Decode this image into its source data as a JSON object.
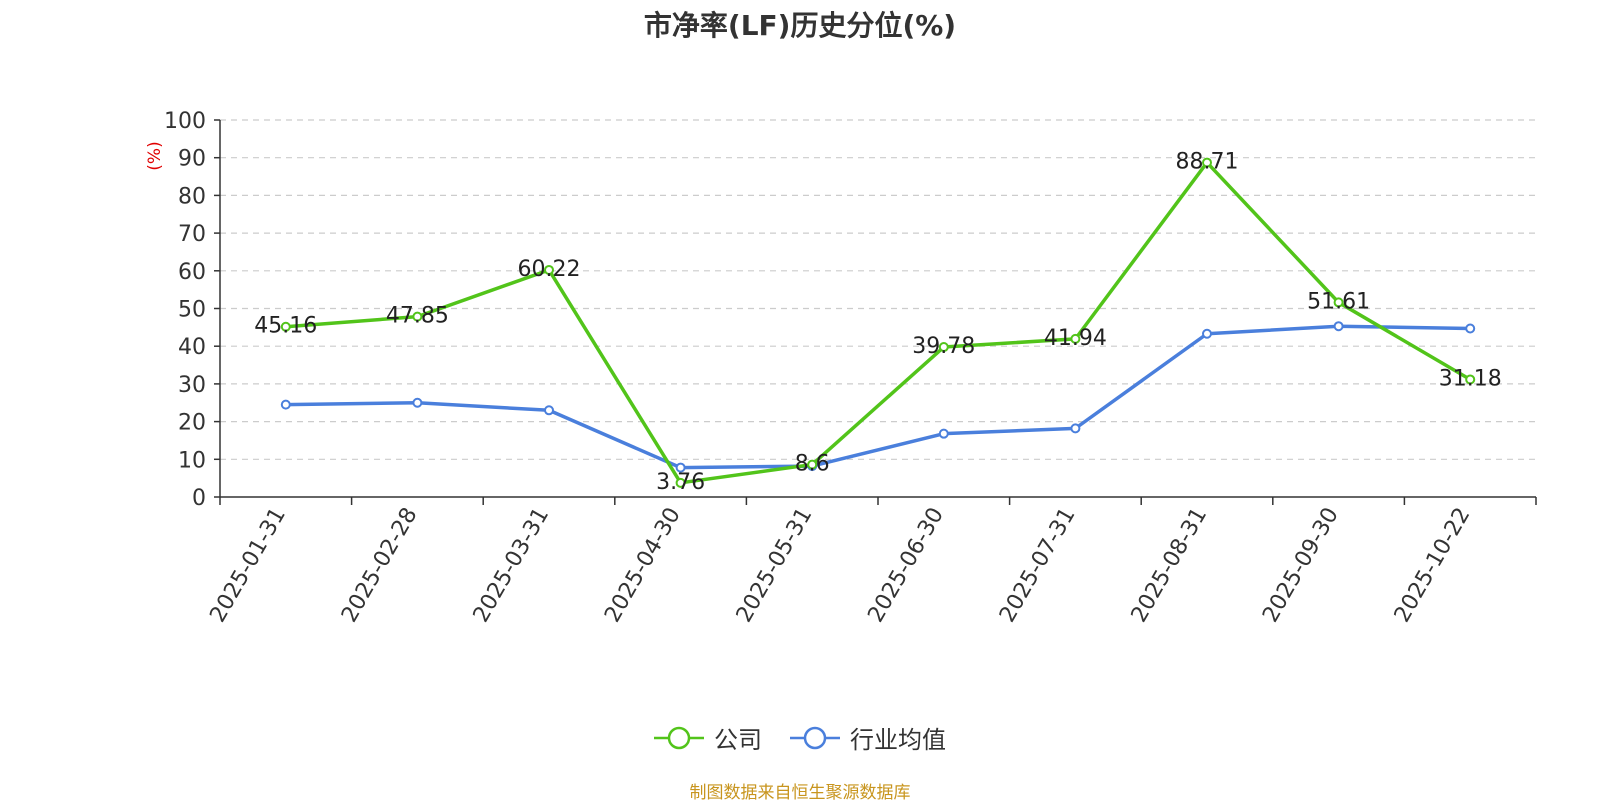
{
  "chart_data": {
    "type": "line",
    "title": "市净率(LF)历史分位(%)",
    "ylabel": "(%)",
    "xlabel": "",
    "ylim": [
      0,
      100
    ],
    "yticks": [
      0,
      10,
      20,
      30,
      40,
      50,
      60,
      70,
      80,
      90,
      100
    ],
    "grid": true,
    "legend_position": "bottom",
    "categories": [
      "2025-01-31",
      "2025-02-28",
      "2025-03-31",
      "2025-04-30",
      "2025-05-31",
      "2025-06-30",
      "2025-07-31",
      "2025-08-31",
      "2025-09-30",
      "2025-10-22"
    ],
    "series": [
      {
        "name": "公司",
        "color": "#52c41a",
        "show_labels": true,
        "values": [
          45.16,
          47.85,
          60.22,
          3.76,
          8.6,
          39.78,
          41.94,
          88.71,
          51.61,
          31.18
        ],
        "labels": [
          "45.16",
          "47.85",
          "60.22",
          "3.76",
          "8.6",
          "39.78",
          "41.94",
          "88.71",
          "51.61",
          "31.18"
        ]
      },
      {
        "name": "行业均值",
        "color": "#4a7fdc",
        "show_labels": false,
        "values": [
          24.5,
          25.0,
          23.0,
          7.8,
          8.2,
          16.8,
          18.2,
          43.3,
          45.3,
          44.7
        ]
      }
    ],
    "source": "制图数据来自恒生聚源数据库"
  }
}
